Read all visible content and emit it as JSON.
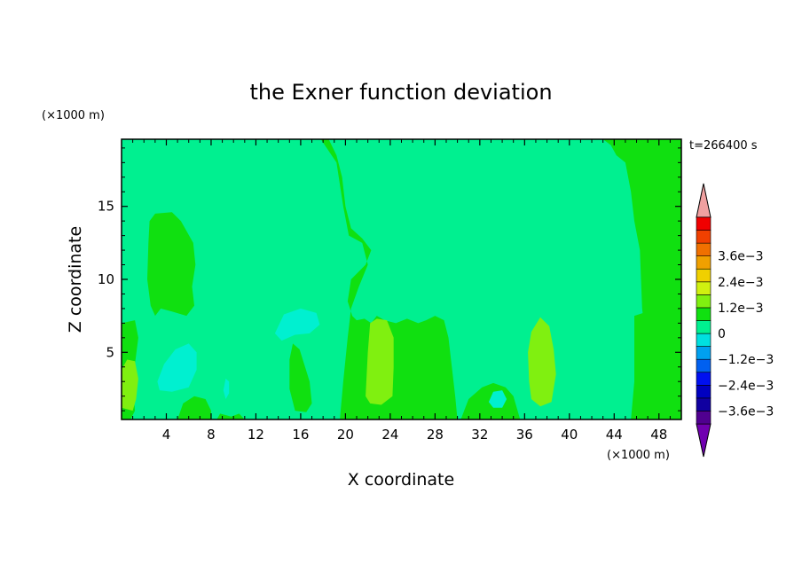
{
  "chart_data": {
    "type": "heatmap",
    "title": "the Exner function deviation",
    "xlabel": "X coordinate",
    "ylabel": "Z coordinate",
    "x_unit_label": "(×1000 m)",
    "y_unit_label": "(×1000 m)",
    "time_label": "t=266400 s",
    "xlim": [
      0,
      50
    ],
    "ylim": [
      0.4,
      19.6
    ],
    "x_ticks": [
      4,
      8,
      12,
      16,
      20,
      24,
      28,
      32,
      36,
      40,
      44,
      48
    ],
    "y_ticks": [
      5,
      10,
      15
    ],
    "x_tick_labels": [
      "4",
      "8",
      "12",
      "16",
      "20",
      "24",
      "28",
      "32",
      "36",
      "40",
      "44",
      "48"
    ],
    "y_tick_labels": [
      "5",
      "10",
      "15"
    ],
    "background_level_color": "#00f090",
    "regions": [
      {
        "level": 0,
        "color": "#10e010",
        "polygon": [
          [
            17.8,
            19.6
          ],
          [
            50,
            19.6
          ],
          [
            50,
            0.4
          ],
          [
            45.5,
            0.4
          ],
          [
            45.8,
            3
          ],
          [
            45.8,
            7.5
          ],
          [
            47,
            7.8
          ],
          [
            48,
            7.6
          ],
          [
            48.7,
            7
          ],
          [
            48.3,
            5
          ],
          [
            47.7,
            3
          ],
          [
            48.2,
            1
          ],
          [
            47.5,
            0.4
          ],
          [
            47,
            2
          ],
          [
            46.8,
            6
          ],
          [
            46.5,
            8
          ],
          [
            46.3,
            12
          ],
          [
            45.8,
            14
          ],
          [
            45.5,
            16
          ],
          [
            45,
            18
          ],
          [
            44.2,
            18.5
          ],
          [
            43.7,
            19.2
          ],
          [
            43,
            19.6
          ]
        ]
      },
      {
        "level": 0,
        "color": "#10e010",
        "polygon": [
          [
            17.8,
            19.6
          ],
          [
            19.2,
            18
          ],
          [
            19.8,
            15
          ],
          [
            20.3,
            13
          ],
          [
            21.5,
            12.5
          ],
          [
            22,
            11
          ],
          [
            21.2,
            9.5
          ],
          [
            20.5,
            8
          ],
          [
            20.2,
            6
          ],
          [
            19.8,
            3
          ],
          [
            19.5,
            0.4
          ],
          [
            30,
            0.4
          ],
          [
            29.8,
            2
          ],
          [
            29.5,
            4
          ],
          [
            29.2,
            6
          ],
          [
            28.8,
            7.2
          ],
          [
            28,
            7.5
          ],
          [
            27.2,
            7.2
          ],
          [
            26.5,
            7
          ],
          [
            25.5,
            7.3
          ],
          [
            24.5,
            7
          ],
          [
            23.5,
            7.2
          ],
          [
            22.8,
            7.5
          ],
          [
            22.3,
            7
          ],
          [
            21.7,
            7.3
          ],
          [
            21,
            7.2
          ],
          [
            20.6,
            7.5
          ],
          [
            20.2,
            8.5
          ],
          [
            20.5,
            10
          ],
          [
            21.8,
            11
          ],
          [
            22.3,
            12
          ],
          [
            21.5,
            12.8
          ],
          [
            20.5,
            13.5
          ],
          [
            20,
            15
          ],
          [
            19.7,
            17
          ],
          [
            19.2,
            18.5
          ],
          [
            18.5,
            19.6
          ]
        ]
      },
      {
        "level": 0,
        "color": "#10e010",
        "polygon": [
          [
            2.5,
            14
          ],
          [
            3,
            14.5
          ],
          [
            4.5,
            14.6
          ],
          [
            5.3,
            14
          ],
          [
            6.4,
            12.5
          ],
          [
            6.6,
            11
          ],
          [
            6.3,
            9.5
          ],
          [
            6.5,
            8.2
          ],
          [
            5.8,
            7.5
          ],
          [
            4.5,
            7.8
          ],
          [
            3.5,
            8
          ],
          [
            3,
            7.5
          ],
          [
            2.6,
            8.2
          ],
          [
            2.3,
            10
          ],
          [
            2.4,
            12.5
          ]
        ]
      },
      {
        "level": 0,
        "color": "#10e010",
        "polygon": [
          [
            0,
            7
          ],
          [
            1.2,
            7.2
          ],
          [
            1.5,
            6
          ],
          [
            1,
            3
          ],
          [
            1.2,
            1
          ],
          [
            0.8,
            0.4
          ],
          [
            0,
            0.4
          ]
        ]
      },
      {
        "level": 0,
        "color": "#10e010",
        "polygon": [
          [
            5,
            0.4
          ],
          [
            5.5,
            1.5
          ],
          [
            6.5,
            2
          ],
          [
            7.5,
            1.8
          ],
          [
            8,
            1
          ],
          [
            8,
            0.4
          ]
        ]
      },
      {
        "level": 0,
        "color": "#10e010",
        "polygon": [
          [
            8.5,
            0.4
          ],
          [
            8.8,
            0.8
          ],
          [
            9.8,
            0.6
          ],
          [
            10.5,
            0.8
          ],
          [
            11,
            0.4
          ]
        ]
      },
      {
        "level": 0,
        "color": "#10e010",
        "polygon": [
          [
            15,
            4.5
          ],
          [
            15.3,
            5.6
          ],
          [
            15.9,
            5.2
          ],
          [
            16.8,
            3
          ],
          [
            17,
            1.5
          ],
          [
            16.5,
            0.9
          ],
          [
            15.5,
            1
          ],
          [
            15,
            2.5
          ]
        ]
      },
      {
        "level": 0,
        "color": "#10e010",
        "polygon": [
          [
            30.3,
            0.4
          ],
          [
            31,
            1.8
          ],
          [
            32.2,
            2.6
          ],
          [
            33.2,
            2.9
          ],
          [
            34.3,
            2.6
          ],
          [
            35,
            2
          ],
          [
            35.6,
            0.4
          ]
        ]
      },
      {
        "level": -0.0006,
        "color": "#00f0d0",
        "polygon": [
          [
            3.2,
            3
          ],
          [
            3.8,
            4.2
          ],
          [
            4.8,
            5.2
          ],
          [
            6,
            5.6
          ],
          [
            6.7,
            5
          ],
          [
            6.7,
            3.8
          ],
          [
            6,
            2.6
          ],
          [
            4.5,
            2.3
          ],
          [
            3.4,
            2.4
          ]
        ]
      },
      {
        "level": -0.0006,
        "color": "#00f0d0",
        "polygon": [
          [
            13.7,
            6.3
          ],
          [
            14.5,
            7.6
          ],
          [
            16,
            8
          ],
          [
            17.4,
            7.7
          ],
          [
            17.7,
            6.9
          ],
          [
            16.8,
            6.3
          ],
          [
            15.5,
            6.2
          ],
          [
            14.3,
            5.8
          ]
        ]
      },
      {
        "level": -0.0006,
        "color": "#00f0d0",
        "polygon": [
          [
            9.1,
            2.4
          ],
          [
            9.3,
            3.2
          ],
          [
            9.6,
            3
          ],
          [
            9.6,
            2.2
          ],
          [
            9.3,
            1.8
          ]
        ]
      },
      {
        "level": -0.0006,
        "color": "#00f0d0",
        "polygon": [
          [
            32.8,
            1.6
          ],
          [
            33.2,
            2.3
          ],
          [
            34,
            2.4
          ],
          [
            34.4,
            1.8
          ],
          [
            34,
            1.2
          ],
          [
            33.2,
            1.2
          ]
        ]
      },
      {
        "level": 0.0006,
        "color": "#80f010",
        "polygon": [
          [
            21.8,
            2
          ],
          [
            22,
            5
          ],
          [
            22.2,
            7
          ],
          [
            22.8,
            7.3
          ],
          [
            23.7,
            7.2
          ],
          [
            24.3,
            6
          ],
          [
            24.3,
            4
          ],
          [
            24.2,
            2
          ],
          [
            23.2,
            1.4
          ],
          [
            22.2,
            1.5
          ]
        ]
      },
      {
        "level": 0.0006,
        "color": "#80f010",
        "polygon": [
          [
            36.4,
            3
          ],
          [
            36.3,
            5
          ],
          [
            36.6,
            6.4
          ],
          [
            37.4,
            7.4
          ],
          [
            38.2,
            6.8
          ],
          [
            38.6,
            5.2
          ],
          [
            38.8,
            3.5
          ],
          [
            38.4,
            1.6
          ],
          [
            37.4,
            1.3
          ],
          [
            36.6,
            1.8
          ]
        ]
      },
      {
        "level": 0.0006,
        "color": "#80f010",
        "polygon": [
          [
            0,
            1.2
          ],
          [
            0,
            3.8
          ],
          [
            0.5,
            4.5
          ],
          [
            1.2,
            4.4
          ],
          [
            1.5,
            3.2
          ],
          [
            1.3,
            1.8
          ],
          [
            1,
            1
          ]
        ]
      }
    ],
    "colorbar": {
      "levels": [
        {
          "color": "#7000b0"
        },
        {
          "color": "#500090"
        },
        {
          "color": "#1000a0",
          "label": "−3.6e−3"
        },
        {
          "color": "#0000c0"
        },
        {
          "color": "#0010f0",
          "label": "−2.4e−3"
        },
        {
          "color": "#0060f0"
        },
        {
          "color": "#00a0f0",
          "label": "−1.2e−3"
        },
        {
          "color": "#00e0e0"
        },
        {
          "color": "#00f090",
          "label": "0"
        },
        {
          "color": "#10e010"
        },
        {
          "color": "#80f010",
          "label": "1.2e−3"
        },
        {
          "color": "#d0f010"
        },
        {
          "color": "#f0d000",
          "label": "2.4e−3"
        },
        {
          "color": "#f0a000"
        },
        {
          "color": "#f07000",
          "label": "3.6e−3"
        },
        {
          "color": "#f04000"
        },
        {
          "color": "#f00000"
        },
        {
          "color": "#f0a0a0"
        }
      ]
    }
  }
}
